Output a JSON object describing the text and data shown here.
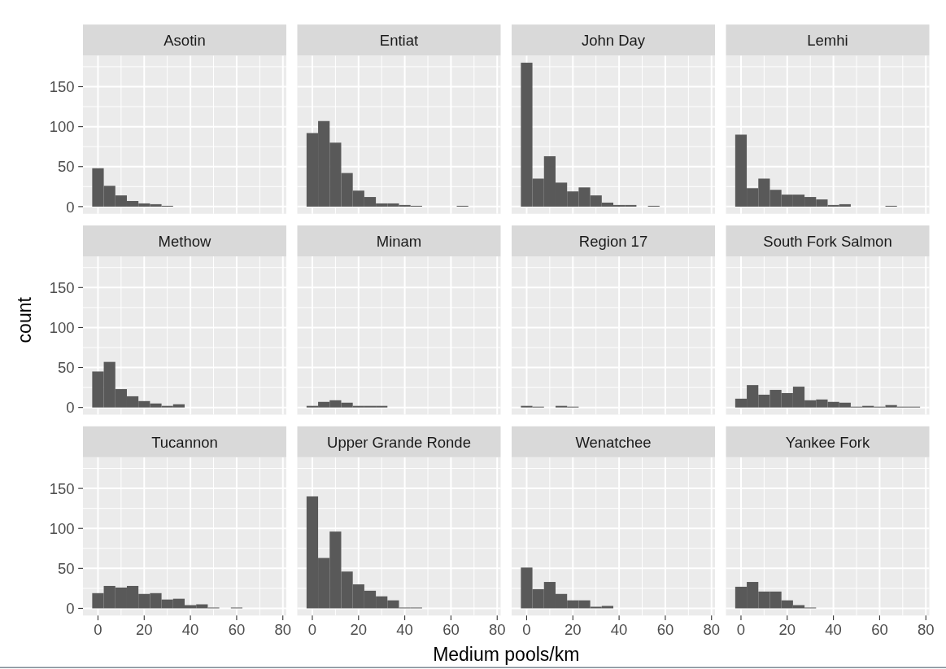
{
  "chart_data": [
    {
      "type": "histogram",
      "title": "Asotin",
      "bins": [
        -2.5,
        2.5,
        7.5,
        12.5,
        17.5,
        22.5,
        27.5,
        32.5
      ],
      "values": [
        48,
        26,
        14,
        7,
        4,
        3,
        1
      ],
      "color": "#595959",
      "xlim": [
        -6.5,
        81.5
      ],
      "ylim": [
        -9,
        189
      ],
      "xticks": [
        0,
        20,
        40,
        60,
        80
      ],
      "yticks": [
        0,
        50,
        100,
        150
      ],
      "grid": true,
      "tick_labels": "y"
    },
    {
      "type": "histogram",
      "title": "Entiat",
      "bins": [
        -2.5,
        2.5,
        7.5,
        12.5,
        17.5,
        22.5,
        27.5,
        32.5,
        37.5,
        42.5,
        47.5,
        52.5,
        57.5,
        62.5,
        67.5
      ],
      "values": [
        92,
        107,
        80,
        42,
        20,
        12,
        4,
        4,
        2,
        1,
        0,
        0,
        0,
        1
      ],
      "color": "#595959",
      "xlim": [
        -6.5,
        81.5
      ],
      "ylim": [
        -9,
        189
      ],
      "xticks": [
        0,
        20,
        40,
        60,
        80
      ],
      "yticks": [
        0,
        50,
        100,
        150
      ],
      "grid": true,
      "tick_labels": false
    },
    {
      "type": "histogram",
      "title": "John Day",
      "bins": [
        -2.5,
        2.5,
        7.5,
        12.5,
        17.5,
        22.5,
        27.5,
        32.5,
        37.5,
        42.5,
        47.5,
        52.5,
        57.5
      ],
      "values": [
        180,
        35,
        63,
        30,
        19,
        24,
        14,
        5,
        2,
        2,
        0,
        1
      ],
      "color": "#595959",
      "xlim": [
        -6.5,
        81.5
      ],
      "ylim": [
        -9,
        189
      ],
      "xticks": [
        0,
        20,
        40,
        60,
        80
      ],
      "yticks": [
        0,
        50,
        100,
        150
      ],
      "grid": true,
      "tick_labels": false
    },
    {
      "type": "histogram",
      "title": "Lemhi",
      "bins": [
        -2.5,
        2.5,
        7.5,
        12.5,
        17.5,
        22.5,
        27.5,
        32.5,
        37.5,
        42.5,
        47.5,
        52.5,
        57.5,
        62.5,
        67.5
      ],
      "values": [
        90,
        23,
        35,
        21,
        15,
        15,
        12,
        9,
        2,
        3,
        0,
        0,
        0,
        1
      ],
      "color": "#595959",
      "xlim": [
        -6.5,
        81.5
      ],
      "ylim": [
        -9,
        189
      ],
      "xticks": [
        0,
        20,
        40,
        60,
        80
      ],
      "yticks": [
        0,
        50,
        100,
        150
      ],
      "grid": true,
      "tick_labels": false
    },
    {
      "type": "histogram",
      "title": "Methow",
      "ylabel": "count",
      "bins": [
        -2.5,
        2.5,
        7.5,
        12.5,
        17.5,
        22.5,
        27.5,
        32.5,
        37.5
      ],
      "values": [
        45,
        57,
        23,
        14,
        8,
        5,
        2,
        4
      ],
      "color": "#595959",
      "xlim": [
        -6.5,
        81.5
      ],
      "ylim": [
        -9,
        189
      ],
      "xticks": [
        0,
        20,
        40,
        60,
        80
      ],
      "yticks": [
        0,
        50,
        100,
        150
      ],
      "grid": true,
      "tick_labels": "y"
    },
    {
      "type": "histogram",
      "title": "Minam",
      "bins": [
        -2.5,
        2.5,
        7.5,
        12.5,
        17.5,
        22.5,
        27.5,
        32.5
      ],
      "values": [
        2,
        7,
        9,
        6,
        2,
        2,
        2
      ],
      "color": "#595959",
      "xlim": [
        -6.5,
        81.5
      ],
      "ylim": [
        -9,
        189
      ],
      "xticks": [
        0,
        20,
        40,
        60,
        80
      ],
      "yticks": [
        0,
        50,
        100,
        150
      ],
      "grid": true,
      "tick_labels": false
    },
    {
      "type": "histogram",
      "title": "Region 17",
      "bins": [
        -2.5,
        2.5,
        7.5,
        12.5,
        17.5,
        22.5
      ],
      "values": [
        2,
        1,
        0,
        2,
        1
      ],
      "color": "#595959",
      "xlim": [
        -6.5,
        81.5
      ],
      "ylim": [
        -9,
        189
      ],
      "xticks": [
        0,
        20,
        40,
        60,
        80
      ],
      "yticks": [
        0,
        50,
        100,
        150
      ],
      "grid": true,
      "tick_labels": false
    },
    {
      "type": "histogram",
      "title": "South Fork Salmon",
      "bins": [
        -2.5,
        2.5,
        7.5,
        12.5,
        17.5,
        22.5,
        27.5,
        32.5,
        37.5,
        42.5,
        47.5,
        52.5,
        57.5,
        62.5,
        67.5,
        72.5,
        77.5
      ],
      "values": [
        11,
        28,
        16,
        22,
        18,
        26,
        9,
        10,
        7,
        6,
        1,
        2,
        1,
        3,
        1,
        1
      ],
      "color": "#595959",
      "xlim": [
        -6.5,
        81.5
      ],
      "ylim": [
        -9,
        189
      ],
      "xticks": [
        0,
        20,
        40,
        60,
        80
      ],
      "yticks": [
        0,
        50,
        100,
        150
      ],
      "grid": true,
      "tick_labels": false
    },
    {
      "type": "histogram",
      "title": "Tucannon",
      "bins": [
        -2.5,
        2.5,
        7.5,
        12.5,
        17.5,
        22.5,
        27.5,
        32.5,
        37.5,
        42.5,
        47.5,
        52.5,
        57.5,
        62.5
      ],
      "values": [
        19,
        28,
        26,
        28,
        18,
        19,
        11,
        12,
        4,
        5,
        1,
        0,
        1
      ],
      "color": "#595959",
      "xlim": [
        -6.5,
        81.5
      ],
      "ylim": [
        -9,
        189
      ],
      "xticks": [
        0,
        20,
        40,
        60,
        80
      ],
      "yticks": [
        0,
        50,
        100,
        150
      ],
      "grid": true
    },
    {
      "type": "histogram",
      "title": "Upper Grande Ronde",
      "xlabel": "Medium pools/km",
      "bins": [
        -2.5,
        2.5,
        7.5,
        12.5,
        17.5,
        22.5,
        27.5,
        32.5,
        37.5,
        42.5,
        47.5
      ],
      "values": [
        140,
        63,
        96,
        46,
        30,
        22,
        15,
        10,
        1,
        1
      ],
      "color": "#595959",
      "xlim": [
        -6.5,
        81.5
      ],
      "ylim": [
        -9,
        189
      ],
      "xticks": [
        0,
        20,
        40,
        60,
        80
      ],
      "yticks": [
        0,
        50,
        100,
        150
      ],
      "grid": true,
      "tick_labels": "x"
    },
    {
      "type": "histogram",
      "title": "Wenatchee",
      "bins": [
        -2.5,
        2.5,
        7.5,
        12.5,
        17.5,
        22.5,
        27.5,
        32.5,
        37.5
      ],
      "values": [
        51,
        24,
        33,
        18,
        10,
        10,
        2,
        3
      ],
      "color": "#595959",
      "xlim": [
        -6.5,
        81.5
      ],
      "ylim": [
        -9,
        189
      ],
      "xticks": [
        0,
        20,
        40,
        60,
        80
      ],
      "yticks": [
        0,
        50,
        100,
        150
      ],
      "grid": true,
      "tick_labels": "x"
    },
    {
      "type": "histogram",
      "title": "Yankee Fork",
      "bins": [
        -2.5,
        2.5,
        7.5,
        12.5,
        17.5,
        22.5,
        27.5,
        32.5
      ],
      "values": [
        27,
        33,
        21,
        21,
        10,
        4,
        1
      ],
      "color": "#595959",
      "xlim": [
        -6.5,
        81.5
      ],
      "ylim": [
        -9,
        189
      ],
      "xticks": [
        0,
        20,
        40,
        60,
        80
      ],
      "yticks": [
        0,
        50,
        100,
        150
      ],
      "grid": true,
      "tick_labels": "x"
    }
  ]
}
